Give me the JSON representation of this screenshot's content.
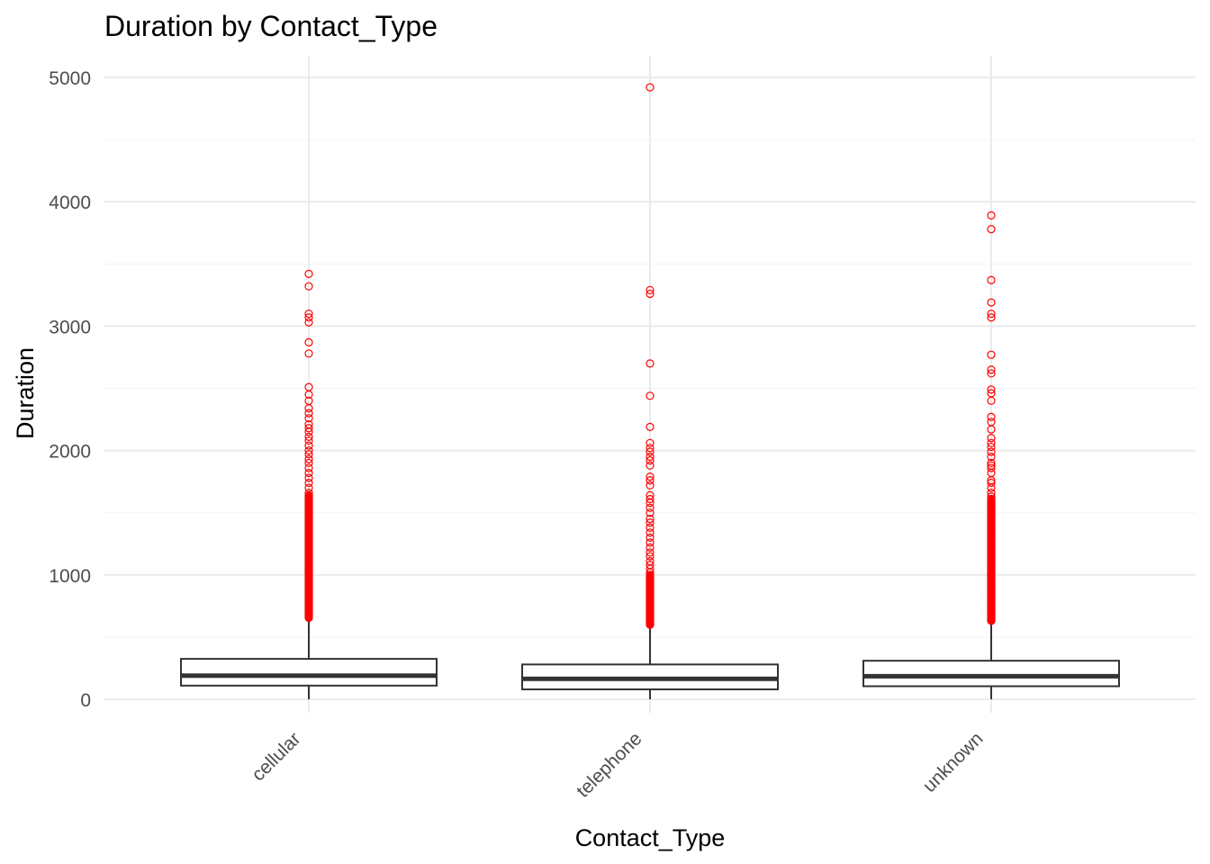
{
  "chart_data": {
    "type": "boxplot",
    "title": "Duration by Contact_Type",
    "xlabel": "Contact_Type",
    "ylabel": "Duration",
    "ylim": [
      -220,
      5160
    ],
    "y_ticks": [
      0,
      1000,
      2000,
      3000,
      4000,
      5000
    ],
    "y_tick_labels": [
      "0",
      "1000",
      "2000",
      "3000",
      "4000",
      "5000"
    ],
    "grid": true,
    "legend": "none",
    "colors": {
      "outlier": "#ff0000",
      "box": "#333333",
      "grid": "#ebebeb"
    },
    "categories": [
      "cellular",
      "telephone",
      "unknown"
    ],
    "boxes": [
      {
        "category": "cellular",
        "q1": 110,
        "median": 190,
        "q3": 325,
        "whisker_low": 0,
        "whisker_high": 645,
        "outlier_dense_range": [
          655,
          1640
        ],
        "outliers": [
          1660,
          1700,
          1740,
          1780,
          1820,
          1860,
          1900,
          1930,
          1970,
          2000,
          2040,
          2080,
          2110,
          2150,
          2180,
          2210,
          2260,
          2300,
          2340,
          2400,
          2450,
          2510,
          2780,
          2870,
          3030,
          3070,
          3100,
          3320,
          3420
        ]
      },
      {
        "category": "telephone",
        "q1": 80,
        "median": 165,
        "q3": 280,
        "whisker_low": 0,
        "whisker_high": 590,
        "outlier_dense_range": [
          600,
          1000
        ],
        "outliers": [
          1020,
          1050,
          1080,
          1110,
          1150,
          1180,
          1220,
          1260,
          1300,
          1340,
          1380,
          1420,
          1450,
          1500,
          1540,
          1580,
          1610,
          1640,
          1720,
          1760,
          1790,
          1880,
          1920,
          1950,
          1990,
          2020,
          2060,
          2190,
          2440,
          2700,
          3260,
          3290,
          4920
        ]
      },
      {
        "category": "unknown",
        "q1": 105,
        "median": 185,
        "q3": 310,
        "whisker_low": 0,
        "whisker_high": 620,
        "outlier_dense_range": [
          630,
          1610
        ],
        "outliers": [
          1630,
          1660,
          1700,
          1740,
          1760,
          1820,
          1860,
          1880,
          1900,
          1950,
          1990,
          2030,
          2060,
          2100,
          2170,
          2230,
          2270,
          2400,
          2460,
          2490,
          2620,
          2650,
          2770,
          3070,
          3100,
          3190,
          3370,
          3780,
          3890
        ]
      }
    ]
  }
}
